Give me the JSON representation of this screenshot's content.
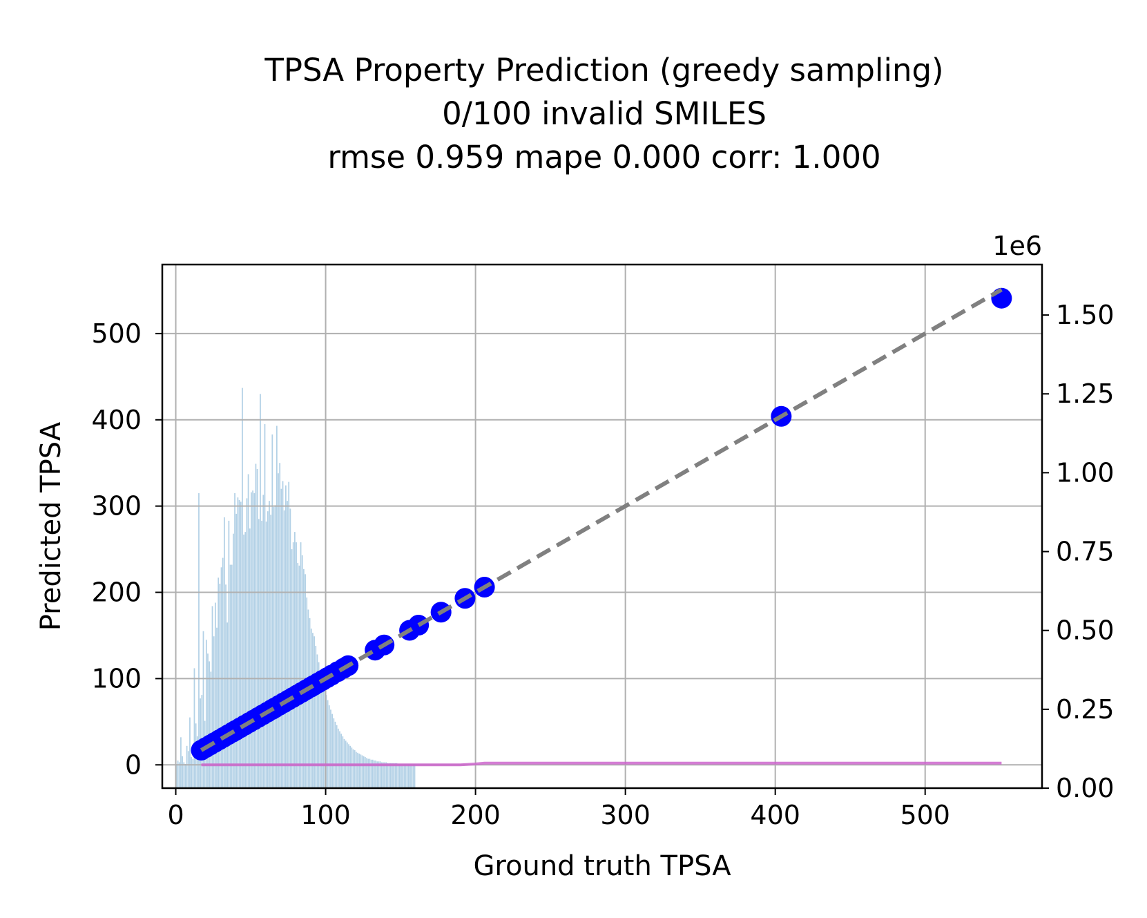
{
  "chart_data": {
    "type": "scatter",
    "title": [
      "TPSA Property Prediction (greedy sampling)",
      "0/100 invalid SMILES",
      "rmse 0.959 mape 0.000 corr: 1.000"
    ],
    "xlabel": "Ground truth TPSA",
    "ylabel": "Predicted TPSA",
    "xlim": [
      -9,
      578
    ],
    "ylim": [
      -27,
      580
    ],
    "xticks": [
      0,
      100,
      200,
      300,
      400,
      500
    ],
    "yticks": [
      0,
      100,
      200,
      300,
      400,
      500
    ],
    "grid": true,
    "secondary_y": {
      "offset_label": "1e6",
      "ylim": [
        0,
        1.66
      ],
      "ticks": [
        0.0,
        0.25,
        0.5,
        0.75,
        1.0,
        1.25,
        1.5
      ],
      "tick_labels": [
        "0.00",
        "0.25",
        "0.50",
        "0.75",
        "1.00",
        "1.25",
        "1.50"
      ]
    },
    "colors": {
      "scatter": "#0000ff",
      "identity_line": "#808080",
      "histogram": "#b3d1e6",
      "cumulative_line": "#cc66cc",
      "grid": "#b0b0b0"
    },
    "scatter_points": {
      "x": [
        17,
        20,
        23,
        26,
        29,
        32,
        35,
        38,
        40,
        43,
        46,
        49,
        52,
        55,
        58,
        61,
        64,
        66,
        69,
        72,
        75,
        78,
        81,
        84,
        87,
        90,
        92,
        95,
        98,
        101,
        104,
        108,
        112,
        115,
        133,
        139,
        156,
        162,
        177,
        193,
        206,
        404,
        551
      ],
      "y": [
        17,
        20,
        23,
        26,
        29,
        32,
        35,
        38,
        40,
        43,
        46,
        49,
        52,
        55,
        58,
        61,
        64,
        66,
        69,
        72,
        75,
        78,
        81,
        84,
        87,
        90,
        92,
        95,
        98,
        101,
        104,
        108,
        112,
        115,
        133,
        139,
        156,
        162,
        177,
        193,
        206,
        404,
        541
      ]
    },
    "identity_line": {
      "x": [
        17,
        551
      ],
      "y": [
        17,
        551
      ]
    },
    "histogram": {
      "bin_width": 1,
      "counts": [
        1,
        5,
        3,
        32,
        10,
        3,
        1,
        22,
        16,
        55,
        9,
        7,
        112,
        48,
        33,
        315,
        77,
        81,
        155,
        51,
        145,
        129,
        120,
        108,
        184,
        149,
        188,
        159,
        217,
        210,
        229,
        240,
        287,
        209,
        165,
        283,
        232,
        232,
        268,
        315,
        291,
        310,
        307,
        305,
        437,
        267,
        270,
        309,
        337,
        274,
        316,
        318,
        315,
        349,
        343,
        285,
        430,
        283,
        313,
        395,
        282,
        294,
        306,
        290,
        383,
        299,
        301,
        393,
        338,
        350,
        320,
        329,
        295,
        324,
        306,
        328,
        297,
        250,
        258,
        270,
        258,
        234,
        231,
        258,
        243,
        227,
        221,
        194,
        180,
        170,
        158,
        153,
        149,
        138,
        128,
        119,
        110,
        102,
        95,
        88,
        81,
        75,
        69,
        64,
        59,
        54,
        50,
        46,
        42,
        39,
        36,
        33,
        30,
        28,
        26,
        24,
        22,
        20,
        18,
        17,
        15,
        14,
        13,
        12,
        11,
        10,
        9,
        8,
        7,
        7,
        6,
        6,
        5,
        5,
        4,
        4,
        4,
        3,
        3,
        3,
        3,
        2,
        2,
        2,
        2,
        2,
        2,
        2,
        1,
        1,
        1,
        1,
        1,
        1,
        1,
        1,
        1,
        1,
        1,
        1
      ]
    },
    "cumulative_line": {
      "x": [
        17,
        20,
        25,
        30,
        35,
        40,
        45,
        50,
        55,
        60,
        65,
        70,
        75,
        80,
        85,
        90,
        95,
        100,
        105,
        110,
        115,
        120,
        130,
        140,
        150,
        160,
        170,
        180,
        190,
        200,
        206,
        250,
        300,
        350,
        400,
        450,
        500,
        551
      ],
      "y": [
        0,
        0,
        0,
        0,
        0,
        0,
        0,
        0,
        0,
        0,
        0,
        0,
        0,
        0,
        0,
        0,
        0,
        0,
        0,
        0,
        0,
        0,
        0,
        0,
        0,
        0,
        0,
        0,
        0,
        1,
        2,
        2,
        2,
        2,
        2,
        2,
        2,
        2
      ]
    }
  }
}
